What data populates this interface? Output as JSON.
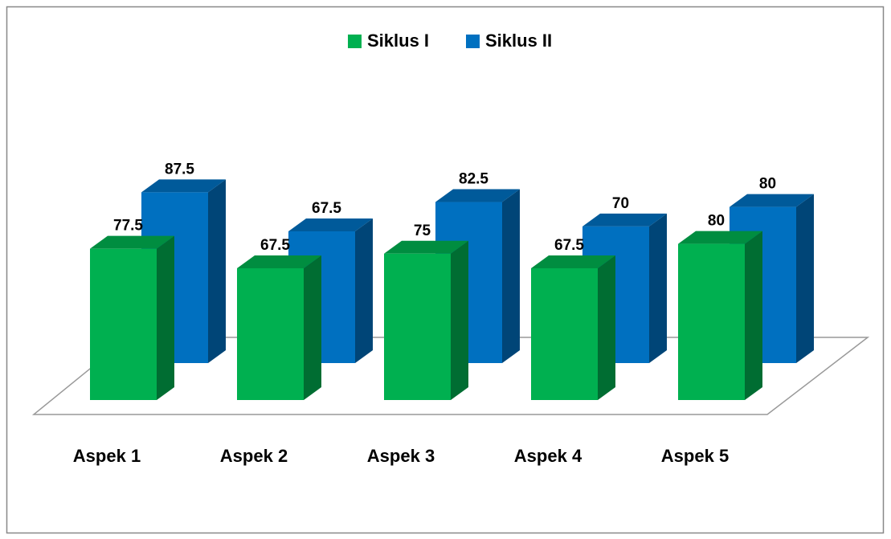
{
  "chart_data": {
    "type": "bar3d",
    "categories": [
      "Aspek 1",
      "Aspek 2",
      "Aspek 3",
      "Aspek 4",
      "Aspek 5"
    ],
    "series": [
      {
        "name": "Siklus I",
        "color": "#00b050",
        "values": [
          77.5,
          67.5,
          75,
          67.5,
          80
        ]
      },
      {
        "name": "Siklus II",
        "color": "#0070c0",
        "values": [
          87.5,
          67.5,
          82.5,
          70,
          80
        ]
      }
    ],
    "ylim": [
      0,
      100
    ],
    "legend": "top"
  }
}
